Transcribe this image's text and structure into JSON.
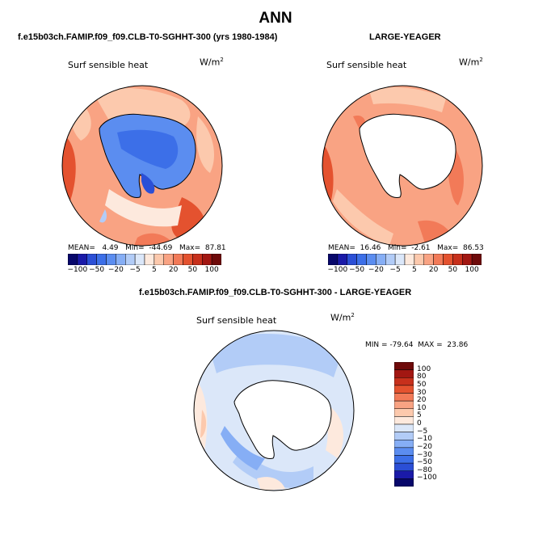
{
  "title": "ANN",
  "colors": {
    "levels": [
      "#08086b",
      "#1a1aa8",
      "#2b4fd6",
      "#3c6fe8",
      "#5b8df0",
      "#86aef5",
      "#b2ccf7",
      "#dbe7f9",
      "#fde9dd",
      "#fcc9ad",
      "#f9a383",
      "#f27a58",
      "#e4522f",
      "#c7301c",
      "#a21712",
      "#6e0a0a"
    ],
    "land": "#ffffff"
  },
  "panels": {
    "model": {
      "title": "f.e15b03ch.FAMIP.f09_f09.CLB-T0-SGHHT-300 (yrs 1980-1984)",
      "variable": "Surf sensible heat",
      "units": "W/m",
      "units_exp": "2",
      "stats": {
        "mean_label": "MEAN=",
        "mean": "4.49",
        "min_label": "Min=",
        "min": "-44.69",
        "max_label": "Max=",
        "max": "87.81"
      }
    },
    "obs": {
      "title": "LARGE-YEAGER",
      "variable": "Surf sensible heat",
      "units": "W/m",
      "units_exp": "2",
      "stats": {
        "mean_label": "MEAN=",
        "mean": "16.46",
        "min_label": "Min=",
        "min": "-2.61",
        "max_label": "Max=",
        "max": "86.53"
      }
    },
    "diff": {
      "title": "f.e15b03ch.FAMIP.f09_f09.CLB-T0-SGHHT-300 - LARGE-YEAGER",
      "variable": "Surf sensible heat",
      "units": "W/m",
      "units_exp": "2",
      "stats": {
        "min_label": "MIN =",
        "min": "-79.64",
        "max_label": "MAX =",
        "max": "23.86"
      }
    }
  },
  "colorbar_h": {
    "labels": [
      "−100",
      "−50",
      "−20",
      "−5",
      "5",
      "20",
      "50",
      "100"
    ]
  },
  "colorbar_v": {
    "labels": [
      "100",
      "80",
      "50",
      "30",
      "20",
      "10",
      "5",
      "0",
      "−5",
      "−10",
      "−20",
      "−30",
      "−50",
      "−80",
      "−100"
    ]
  }
}
